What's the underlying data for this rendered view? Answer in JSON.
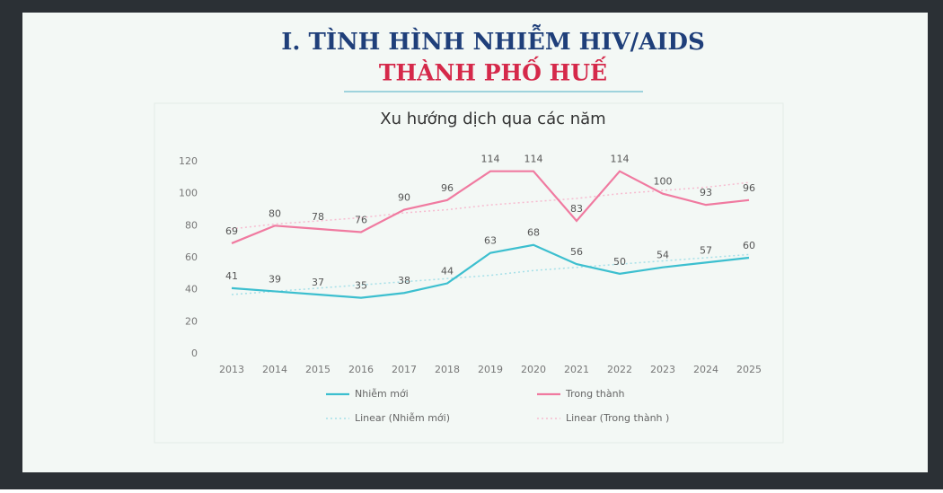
{
  "header": {
    "title": "I. TÌNH HÌNH NHIỄM HIV/AIDS",
    "subtitle": "THÀNH PHỐ HUẾ"
  },
  "chart_data": {
    "type": "line",
    "title": "Xu hướng dịch qua các năm",
    "categories": [
      "2013",
      "2014",
      "2015",
      "2016",
      "2017",
      "2018",
      "2019",
      "2020",
      "2021",
      "2022",
      "2023",
      "2024",
      "2025"
    ],
    "series": [
      {
        "name": "Nhiễm mới",
        "color": "#3cbfcf",
        "values": [
          41,
          39,
          37,
          35,
          38,
          44,
          63,
          68,
          56,
          50,
          54,
          57,
          60
        ],
        "data_labels": true
      },
      {
        "name": "Trong thành",
        "color": "#f07aa0",
        "values": [
          69,
          80,
          78,
          76,
          90,
          96,
          114,
          114,
          83,
          114,
          100,
          93,
          96
        ],
        "data_labels": true
      },
      {
        "name": "Linear (Nhiễm mới)",
        "color": "#a6e0e8",
        "values": [
          37,
          39,
          41,
          43,
          45,
          47,
          49,
          52,
          54,
          56,
          58,
          60,
          62
        ],
        "dashed": true
      },
      {
        "name": "Linear (Trong thành )",
        "color": "#f6bcd0",
        "values": [
          78,
          81,
          83,
          85,
          88,
          90,
          93,
          95,
          97,
          100,
          102,
          104,
          107
        ],
        "dashed": true
      }
    ],
    "ylim": [
      0,
      120
    ],
    "yticks": [
      0,
      20,
      40,
      60,
      80,
      100,
      120
    ],
    "grid": false,
    "legend": "bottom"
  }
}
